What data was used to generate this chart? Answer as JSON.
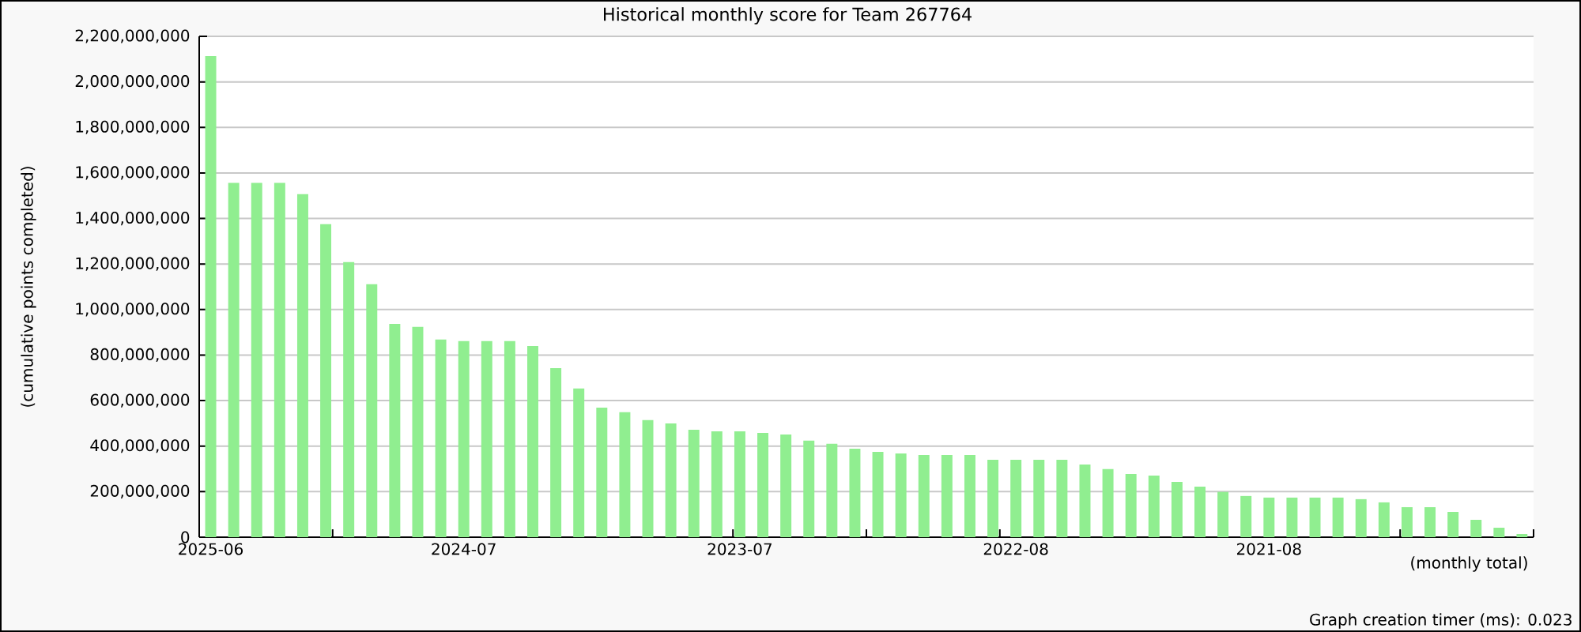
{
  "chart_data": {
    "type": "bar",
    "title": "Historical monthly score for Team 267764",
    "xlabel": "(monthly total)",
    "ylabel": "(cumulative points completed)",
    "annotations": [
      "Graph creation timer (ms): 0.023"
    ],
    "categories": [
      "2025-06",
      null,
      null,
      null,
      null,
      null,
      null,
      null,
      null,
      null,
      null,
      "2024-07",
      null,
      null,
      null,
      null,
      null,
      null,
      null,
      null,
      null,
      null,
      null,
      "2023-07",
      null,
      null,
      null,
      null,
      null,
      null,
      null,
      null,
      null,
      null,
      null,
      "2022-08",
      null,
      null,
      null,
      null,
      null,
      null,
      null,
      null,
      null,
      null,
      "2021-08",
      null,
      null,
      null,
      null,
      null,
      null,
      null,
      null,
      null,
      null,
      null
    ],
    "values": [
      2113000000,
      1556000000,
      1556000000,
      1556000000,
      1507000000,
      1375000000,
      1208000000,
      1111000000,
      937000000,
      924000000,
      868000000,
      861000000,
      861000000,
      861000000,
      840000000,
      743000000,
      653000000,
      569000000,
      549000000,
      514000000,
      500000000,
      472000000,
      465000000,
      465000000,
      458000000,
      451000000,
      424000000,
      410000000,
      389000000,
      375000000,
      368000000,
      361000000,
      361000000,
      361000000,
      340000000,
      340000000,
      340000000,
      340000000,
      319000000,
      299000000,
      278000000,
      271000000,
      243000000,
      222000000,
      199000000,
      181000000,
      174000000,
      174000000,
      174000000,
      174000000,
      167000000,
      153000000,
      132000000,
      132000000,
      111000000,
      76000000,
      42000000,
      14000000
    ],
    "color": "#90ee90",
    "ylim": [
      0,
      2200000000
    ],
    "yticks": [
      0,
      {
        "value": 200000000,
        "label": "200,000,000"
      },
      {
        "value": 400000000,
        "label": "400,000,000"
      },
      {
        "value": 600000000,
        "label": "600,000,000"
      },
      {
        "value": 800000000,
        "label": "800,000,000"
      },
      {
        "value": 1000000000,
        "label": "1,000,000,000"
      },
      {
        "value": 1200000000,
        "label": "1,200,000,000"
      },
      {
        "value": 1400000000,
        "label": "1,400,000,000"
      },
      {
        "value": 1600000000,
        "label": "1,600,000,000"
      },
      {
        "value": 1800000000,
        "label": "1,800,000,000"
      },
      {
        "value": 2000000000,
        "label": "2,000,000,000"
      },
      {
        "value": 2200000000,
        "label": "2,200,000,000"
      }
    ],
    "grid": "y"
  }
}
